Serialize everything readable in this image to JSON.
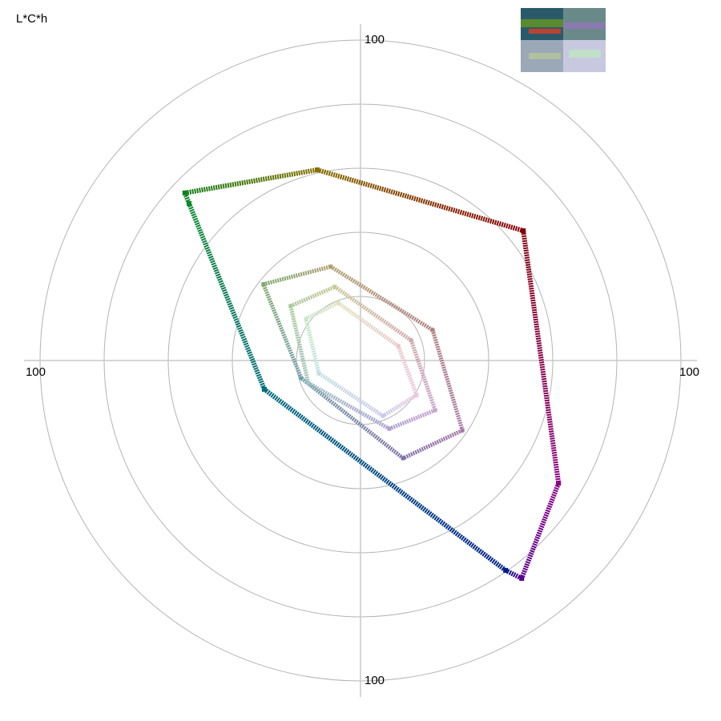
{
  "chart_data": {
    "type": "polar-loops",
    "title": "L*C*h",
    "rlim": [
      0,
      100
    ],
    "rgrid": [
      20,
      40,
      60,
      80,
      100
    ],
    "grid": true,
    "series": [
      {
        "x": [
          50.8,
          61.8,
          50.3,
          45.3,
          -30,
          -53.5,
          -54.8,
          -13.5
        ],
        "values": [
          40.5,
          -38.3,
          -68,
          -65.5,
          -9,
          49,
          52.3,
          59.5
        ],
        "colors": [
          "#880008",
          "#8c0088",
          "#5a008e",
          "#00208a",
          "#006e80",
          "#0a8a30",
          "#108018",
          "#857000"
        ]
      },
      {
        "x": [
          -9.3,
          22.5,
          31.8,
          13.3,
          -18.5,
          -30.3
        ],
        "values": [
          29.3,
          9.5,
          -21.8,
          -30.5,
          -5.5,
          23.8
        ],
        "colors": [
          "#b0a070",
          "#b08080",
          "#a878a8",
          "#8070a8",
          "#70a0a8",
          "#80a870"
        ]
      },
      {
        "x": [
          -8,
          15.8,
          23.3,
          9,
          -16.3,
          -21.8
        ],
        "values": [
          23,
          6.3,
          -15.5,
          -21.3,
          -7,
          17
        ],
        "colors": [
          "#c8c898",
          "#d0a8a8",
          "#c8a0d0",
          "#a8a0d0",
          "#a0c0c0",
          "#a8c898"
        ]
      },
      {
        "x": [
          -7,
          11.8,
          17.5,
          7,
          -13,
          -17
        ],
        "values": [
          18,
          4.5,
          -10.8,
          -17.3,
          -4,
          13
        ],
        "colors": [
          "#e0e0c0",
          "#e8c8c8",
          "#e8c8e0",
          "#c8c8e8",
          "#c0e0e0",
          "#c8e8c8"
        ]
      }
    ]
  }
}
